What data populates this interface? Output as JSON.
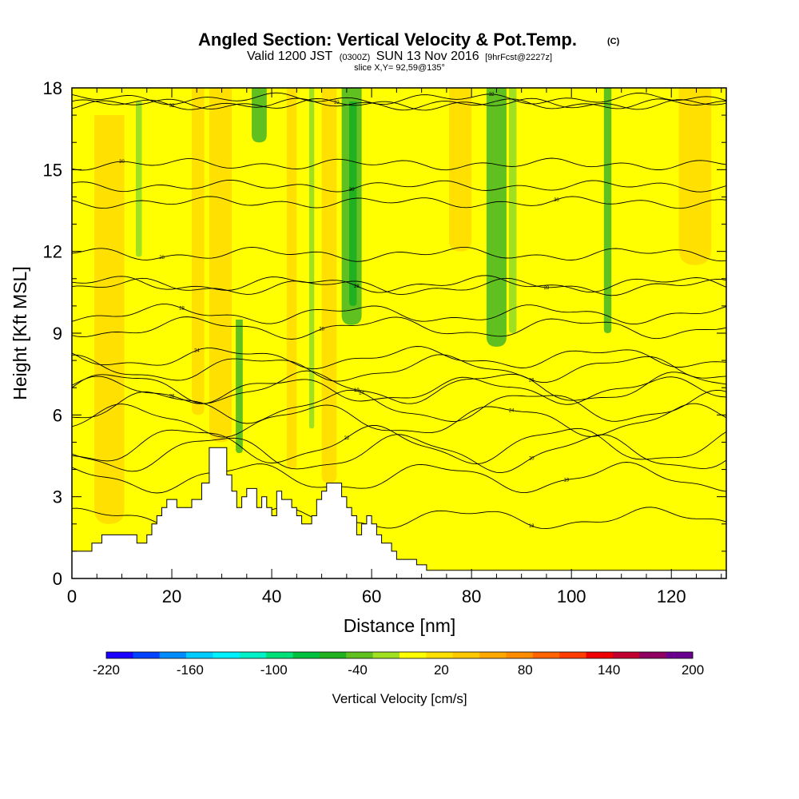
{
  "header": {
    "title": "Angled Section: Vertical Velocity & Pot.Temp.",
    "title_mark": "(C)",
    "valid_prefix": "Valid 1200 JST",
    "valid_utc": "(0300Z)",
    "valid_date": "SUN 13 Nov 2016",
    "forecast": "[9hrFcst@2227z]",
    "slice": "slice X,Y= 92,59@135°"
  },
  "chart_data": {
    "type": "heatmap",
    "xlabel": "Distance [nm]",
    "ylabel": "Height [Kft MSL]",
    "xlim": [
      0,
      131
    ],
    "ylim": [
      0,
      18
    ],
    "x_ticks": [
      0,
      20,
      40,
      60,
      80,
      100,
      120
    ],
    "y_ticks": [
      0,
      3,
      6,
      9,
      12,
      15,
      18
    ],
    "background_level_cm_s": 10,
    "velocity_bands": [
      {
        "x0": 12.8,
        "x1": 14.0,
        "y0": 11.8,
        "y1": 17.5,
        "w": -20
      },
      {
        "x0": 32.8,
        "x1": 34.2,
        "y0": 4.6,
        "y1": 9.5,
        "w": -30
      },
      {
        "x0": 36.0,
        "x1": 39.0,
        "y0": 16.0,
        "y1": 18.0,
        "w": -30
      },
      {
        "x0": 47.5,
        "x1": 48.5,
        "y0": 5.5,
        "y1": 18.0,
        "w": -20
      },
      {
        "x0": 54.0,
        "x1": 58.0,
        "y0": 9.3,
        "y1": 18.0,
        "w": -40
      },
      {
        "x0": 55.5,
        "x1": 57.0,
        "y0": 10.0,
        "y1": 17.5,
        "w": -50
      },
      {
        "x0": 83.0,
        "x1": 87.0,
        "y0": 8.5,
        "y1": 18.0,
        "w": -30
      },
      {
        "x0": 87.5,
        "x1": 89.0,
        "y0": 9.0,
        "y1": 18.0,
        "w": -20
      },
      {
        "x0": 106.5,
        "x1": 108.0,
        "y0": 9.0,
        "y1": 18.0,
        "w": -30
      },
      {
        "x0": 4.5,
        "x1": 10.5,
        "y0": 2.0,
        "y1": 17.0,
        "w": 20
      },
      {
        "x0": 24.0,
        "x1": 26.5,
        "y0": 6.0,
        "y1": 18.0,
        "w": 20
      },
      {
        "x0": 27.5,
        "x1": 32.0,
        "y0": 5.0,
        "y1": 18.0,
        "w": 30
      },
      {
        "x0": 43.0,
        "x1": 45.0,
        "y0": 4.0,
        "y1": 18.0,
        "w": 20
      },
      {
        "x0": 50.0,
        "x1": 53.0,
        "y0": 3.5,
        "y1": 18.0,
        "w": 20
      },
      {
        "x0": 75.5,
        "x1": 80.0,
        "y0": 12.0,
        "y1": 18.0,
        "w": 20
      },
      {
        "x0": 121.5,
        "x1": 128.0,
        "y0": 11.5,
        "y1": 18.0,
        "w": 20
      }
    ],
    "colorbar": {
      "label": "Vertical Velocity [cm/s]",
      "min": -220,
      "max": 200,
      "step": 20,
      "tick_labels": [
        "-220",
        "-160",
        "-100",
        "-40",
        "20",
        "80",
        "140",
        "200"
      ],
      "tick_values": [
        -220,
        -160,
        -100,
        -40,
        20,
        80,
        140,
        200
      ],
      "colors": [
        "#1a00ff",
        "#0042ff",
        "#008cff",
        "#00ccff",
        "#00f0ff",
        "#00f0c8",
        "#00e078",
        "#00c040",
        "#20b020",
        "#60c020",
        "#a0e020",
        "#ffff00",
        "#ffe000",
        "#ffc800",
        "#ffa800",
        "#ff8c00",
        "#ff6400",
        "#ff3c00",
        "#ee0000",
        "#c00030",
        "#900060",
        "#6a0090"
      ]
    },
    "terrain": [
      [
        0,
        1
      ],
      [
        4,
        1
      ],
      [
        4,
        1.3
      ],
      [
        6,
        1.3
      ],
      [
        6,
        1.6
      ],
      [
        13,
        1.6
      ],
      [
        13,
        1.3
      ],
      [
        15,
        1.3
      ],
      [
        15,
        1.6
      ],
      [
        16,
        1.6
      ],
      [
        16,
        2
      ],
      [
        17,
        2
      ],
      [
        17,
        2.3
      ],
      [
        18,
        2.3
      ],
      [
        18,
        2.6
      ],
      [
        19,
        2.6
      ],
      [
        19,
        2.9
      ],
      [
        21,
        2.9
      ],
      [
        21,
        2.6
      ],
      [
        24,
        2.6
      ],
      [
        24,
        2.9
      ],
      [
        26,
        2.9
      ],
      [
        26,
        3.5
      ],
      [
        27.5,
        3.5
      ],
      [
        27.5,
        4.8
      ],
      [
        31,
        4.8
      ],
      [
        31,
        3.8
      ],
      [
        32,
        3.8
      ],
      [
        32,
        3.2
      ],
      [
        33,
        3.2
      ],
      [
        33,
        2.6
      ],
      [
        34,
        2.6
      ],
      [
        34,
        3
      ],
      [
        35,
        3
      ],
      [
        35,
        3.3
      ],
      [
        37,
        3.3
      ],
      [
        37,
        2.6
      ],
      [
        38,
        2.6
      ],
      [
        38,
        3
      ],
      [
        39,
        3
      ],
      [
        39,
        2.6
      ],
      [
        40,
        2.6
      ],
      [
        40,
        2.3
      ],
      [
        41,
        2.3
      ],
      [
        41,
        3.2
      ],
      [
        42,
        3.2
      ],
      [
        42,
        2.9
      ],
      [
        44,
        2.9
      ],
      [
        44,
        2.6
      ],
      [
        45,
        2.6
      ],
      [
        45,
        2.3
      ],
      [
        46,
        2.3
      ],
      [
        46,
        2
      ],
      [
        48,
        2
      ],
      [
        48,
        2.3
      ],
      [
        49,
        2.3
      ],
      [
        49,
        2.9
      ],
      [
        50,
        2.9
      ],
      [
        50,
        3.2
      ],
      [
        51,
        3.2
      ],
      [
        51,
        3.5
      ],
      [
        54,
        3.5
      ],
      [
        54,
        3
      ],
      [
        55,
        3
      ],
      [
        55,
        2.6
      ],
      [
        56,
        2.6
      ],
      [
        56,
        2.3
      ],
      [
        57,
        2.3
      ],
      [
        57,
        1.6
      ],
      [
        58,
        1.6
      ],
      [
        58,
        2
      ],
      [
        59,
        2
      ],
      [
        59,
        2.3
      ],
      [
        60,
        2.3
      ],
      [
        60,
        2
      ],
      [
        61,
        2
      ],
      [
        61,
        1.6
      ],
      [
        62,
        1.6
      ],
      [
        62,
        1.3
      ],
      [
        64,
        1.3
      ],
      [
        64,
        1
      ],
      [
        65,
        1
      ],
      [
        65,
        0.7
      ],
      [
        69,
        0.7
      ],
      [
        69,
        0.5
      ],
      [
        71,
        0.5
      ],
      [
        71,
        0.3
      ],
      [
        131,
        0.3
      ],
      [
        131,
        0
      ],
      [
        0,
        0
      ]
    ],
    "theta_contours": [
      {
        "base": 5.5,
        "amp": 0.5,
        "label": "19",
        "label_x": 57,
        "label_at": 7
      },
      {
        "base": 4.0,
        "amp": 0.3,
        "label": "18",
        "label_x": 92,
        "label_at": 2.2
      },
      {
        "base": 5.0,
        "amp": 0.45,
        "label": "19",
        "label_x": 99,
        "label_at": 3.7
      },
      {
        "base": 6.0,
        "amp": 0.6,
        "label": "20",
        "label_x": 92,
        "label_at": 4.6
      },
      {
        "base": 7.0,
        "amp": 0.6,
        "label": "22",
        "label_x": 55,
        "label_at": 4.9
      },
      {
        "base": 8.0,
        "amp": 0.5,
        "label": "24",
        "label_x": 58,
        "label_at": 6.3
      },
      {
        "base": 9.0,
        "amp": 0.5,
        "label": "24",
        "label_x": 88,
        "label_at": 5.8
      },
      {
        "base": 10.0,
        "amp": 0.4,
        "label": "26",
        "label_x": 20,
        "label_at": 6.9
      },
      {
        "base": 11.0,
        "amp": 0.4,
        "label": "26",
        "label_x": 92,
        "label_at": 7.7
      },
      {
        "base": 12.0,
        "amp": 0.3,
        "label": "24",
        "label_x": 25,
        "label_at": 8.1
      },
      {
        "base": 13.0,
        "amp": 0.3,
        "label": "28",
        "label_x": 50,
        "label_at": 9.2
      },
      {
        "base": 14.0,
        "amp": 0.25,
        "label": "28",
        "label_x": 22,
        "label_at": 9.7
      },
      {
        "base": 15.0,
        "amp": 0.2,
        "label": "28",
        "label_x": 95,
        "label_at": 10.7
      },
      {
        "base": 16.0,
        "amp": 0.2,
        "label": "28",
        "label_x": 57,
        "label_at": 10.8
      },
      {
        "base": 17.0,
        "amp": 0.15,
        "label": "28",
        "label_x": 18,
        "label_at": 11.9
      },
      {
        "base": 18.0,
        "amp": 0.1,
        "label": "30",
        "label_x": 56,
        "label_at": 14.4
      },
      {
        "base": 19.0,
        "amp": 0.1,
        "label": "30",
        "label_x": 97,
        "label_at": 13.8
      },
      {
        "base": 20.0,
        "amp": 0.1,
        "label": "30",
        "label_x": 10,
        "label_at": 15.2
      },
      {
        "base": 21.0,
        "amp": 0.1,
        "label": "32",
        "label_x": 53,
        "label_at": 17.4
      },
      {
        "base": 22.0,
        "amp": 0.1,
        "label": "32",
        "label_x": 20,
        "label_at": 17.4
      },
      {
        "base": 23.0,
        "amp": 0.1,
        "label": "32",
        "label_x": 84,
        "label_at": 17.6
      }
    ]
  }
}
